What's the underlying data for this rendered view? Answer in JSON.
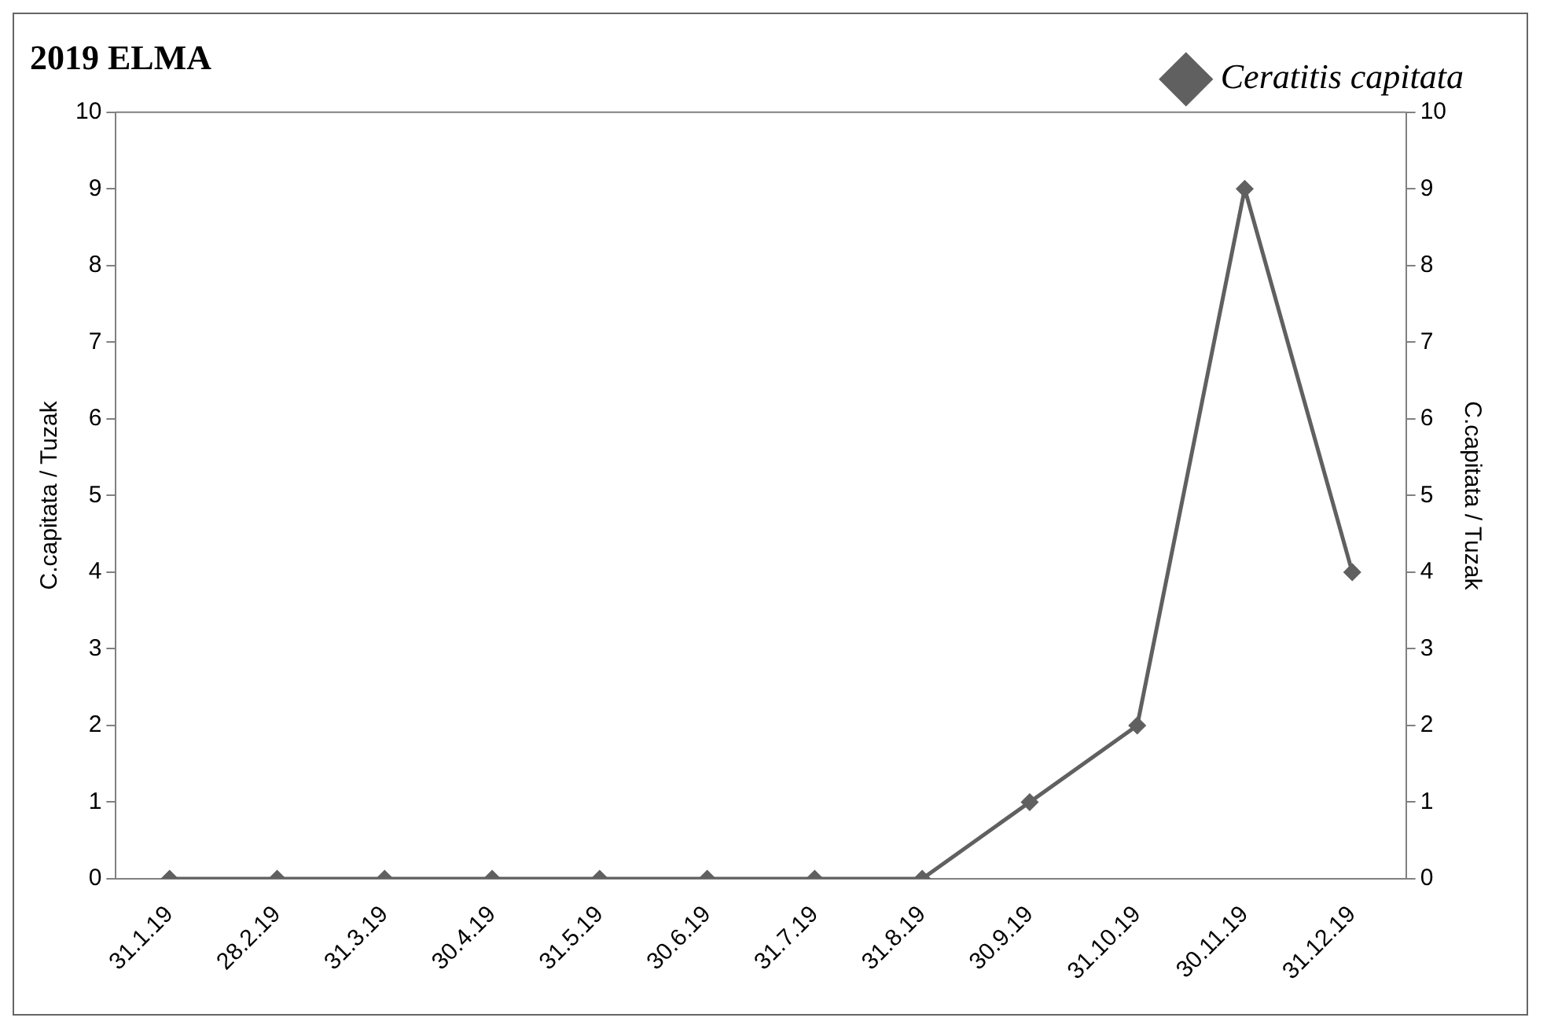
{
  "chart_data": {
    "type": "line",
    "title": "2019 ELMA",
    "ylabel": "C.capitata / Tuzak",
    "y2label": "C.capitata / Tuzak",
    "categories": [
      "31.1.19",
      "28.2.19",
      "31.3.19",
      "30.4.19",
      "31.5.19",
      "30.6.19",
      "31.7.19",
      "31.8.19",
      "30.9.19",
      "31.10.19",
      "30.11.19",
      "31.12.19"
    ],
    "series": [
      {
        "name": "Ceratitis capitata",
        "color": "#606060",
        "values": [
          0,
          0,
          0,
          0,
          0,
          0,
          0,
          0,
          1,
          2,
          9,
          4
        ]
      }
    ],
    "ylim": [
      0,
      10
    ],
    "yticks": [
      0,
      1,
      2,
      3,
      4,
      5,
      6,
      7,
      8,
      9,
      10
    ],
    "y2lim": [
      0,
      10
    ],
    "y2ticks": [
      0,
      1,
      2,
      3,
      4,
      5,
      6,
      7,
      8,
      9,
      10
    ],
    "grid": false,
    "legend": "top right",
    "marker": "diamond",
    "line_style": "solid"
  }
}
